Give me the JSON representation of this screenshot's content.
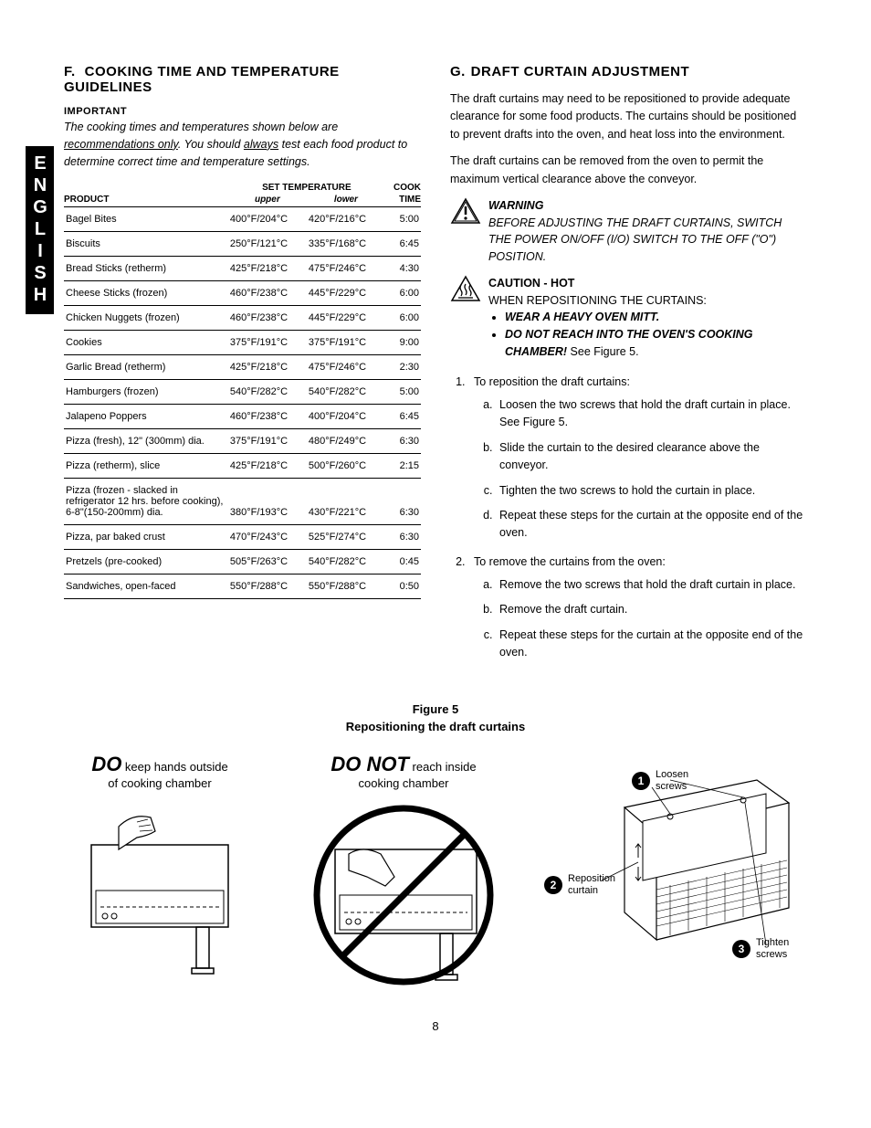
{
  "side_tab": "ENGLISH",
  "page_number": "8",
  "sectionF": {
    "letter": "F.",
    "title": "COOKING  TIME  AND  TEMPERATURE GUIDELINES",
    "important_label": "IMPORTANT",
    "important_html": "The cooking times and temperatures shown below are <span class=\"u\">recommendations only</span>.  You should <span class=\"u\">always</span> test each food product to determine correct time and temperature settings.",
    "table": {
      "header_product": "PRODUCT",
      "header_settemp": "SET TEMPERATURE",
      "header_upper": "upper",
      "header_lower": "lower",
      "header_cook": "COOK",
      "header_time": "TIME",
      "rows": [
        {
          "p": "Bagel Bites",
          "u": "400°F/204°C",
          "l": "420°F/216°C",
          "t": "5:00"
        },
        {
          "p": "Biscuits",
          "u": "250°F/121°C",
          "l": "335°F/168°C",
          "t": "6:45"
        },
        {
          "p": "Bread Sticks (retherm)",
          "u": "425°F/218°C",
          "l": "475°F/246°C",
          "t": "4:30"
        },
        {
          "p": "Cheese Sticks (frozen)",
          "u": "460°F/238°C",
          "l": "445°F/229°C",
          "t": "6:00"
        },
        {
          "p": "Chicken Nuggets (frozen)",
          "u": "460°F/238°C",
          "l": "445°F/229°C",
          "t": "6:00"
        },
        {
          "p": "Cookies",
          "u": "375°F/191°C",
          "l": "375°F/191°C",
          "t": "9:00"
        },
        {
          "p": "Garlic Bread (retherm)",
          "u": "425°F/218°C",
          "l": "475°F/246°C",
          "t": "2:30"
        },
        {
          "p": "Hamburgers (frozen)",
          "u": "540°F/282°C",
          "l": "540°F/282°C",
          "t": "5:00"
        },
        {
          "p": "Jalapeno Poppers",
          "u": "460°F/238°C",
          "l": "400°F/204°C",
          "t": "6:45"
        },
        {
          "p": "Pizza (fresh), 12\" (300mm) dia.",
          "u": "375°F/191°C",
          "l": "480°F/249°C",
          "t": "6:30"
        },
        {
          "p": "Pizza (retherm), slice",
          "u": "425°F/218°C",
          "l": "500°F/260°C",
          "t": "2:15"
        },
        {
          "p": "Pizza (frozen - slacked in refrigerator 12 hrs. before cooking), 6-8\"(150-200mm) dia.",
          "u": "380°F/193°C",
          "l": "430°F/221°C",
          "t": "6:30"
        },
        {
          "p": "Pizza, par baked crust",
          "u": "470°F/243°C",
          "l": "525°F/274°C",
          "t": "6:30"
        },
        {
          "p": "Pretzels (pre-cooked)",
          "u": "505°F/263°C",
          "l": "540°F/282°C",
          "t": "0:45"
        },
        {
          "p": "Sandwiches, open-faced",
          "u": "550°F/288°C",
          "l": "550°F/288°C",
          "t": "0:50"
        }
      ]
    }
  },
  "sectionG": {
    "letter": "G.",
    "title": "DRAFT CURTAIN ADJUSTMENT",
    "p1": "The draft curtains may need to be repositioned to provide adequate clearance for some food products.  The curtains should be positioned to prevent drafts into the oven, and heat loss into the environment.",
    "p2": "The draft curtains can be removed from the oven to permit the maximum vertical clearance above the conveyor.",
    "warning_title": "WARNING",
    "warning_text": "BEFORE ADJUSTING THE DRAFT CURTAINS, SWITCH THE POWER ON/OFF (I/O) SWITCH TO THE OFF (\"O\") POSITION.",
    "caution_title": "CAUTION - HOT",
    "caution_line": "WHEN REPOSITIONING THE CURTAINS:",
    "caution_b1": "WEAR A HEAVY OVEN MITT.",
    "caution_b2_bold": "DO NOT REACH INTO THE OVEN'S COOKING CHAMBER!",
    "caution_b2_rest": "  See Figure 5.",
    "step1": "To reposition the draft curtains:",
    "step1_items": [
      "Loosen the two screws that hold the draft curtain in place.  See Figure 5.",
      "Slide the curtain to the desired clearance above the conveyor.",
      "Tighten the two screws to hold the curtain in place.",
      "Repeat these steps for the curtain at the opposite end of the oven."
    ],
    "step2": "To remove the curtains from the oven:",
    "step2_items": [
      "Remove the two screws that hold the draft curtain in place.",
      "Remove the draft curtain.",
      "Repeat these steps for the curtain at the opposite end of the oven."
    ]
  },
  "figure5": {
    "caption1": "Figure 5",
    "caption2": "Repositioning the draft curtains",
    "do_big": "DO",
    "do_rest": " keep hands outside",
    "do_line2": "of cooking chamber",
    "donot_big": "DO NOT",
    "donot_rest": " reach inside",
    "donot_line2": "cooking chamber",
    "label1": "Loosen screws",
    "label2": "Reposition curtain",
    "label3": "Tighten screws"
  }
}
